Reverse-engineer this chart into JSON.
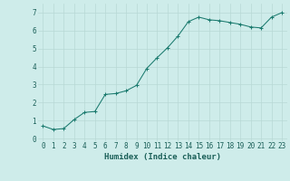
{
  "x": [
    0,
    1,
    2,
    3,
    4,
    5,
    6,
    7,
    8,
    9,
    10,
    11,
    12,
    13,
    14,
    15,
    16,
    17,
    18,
    19,
    20,
    21,
    22,
    23
  ],
  "y": [
    0.7,
    0.5,
    0.55,
    1.05,
    1.45,
    1.5,
    2.45,
    2.5,
    2.65,
    2.95,
    3.9,
    4.5,
    5.05,
    5.7,
    6.5,
    6.75,
    6.6,
    6.55,
    6.45,
    6.35,
    6.2,
    6.15,
    6.75,
    7.0
  ],
  "line_color": "#1a7a6e",
  "marker": "+",
  "marker_color": "#1a7a6e",
  "bg_color": "#ceecea",
  "grid_color": "#b8d8d5",
  "xlabel": "Humidex (Indice chaleur)",
  "xlabel_color": "#1a5f58",
  "xlabel_fontsize": 6.5,
  "tick_color": "#1a5f58",
  "tick_fontsize": 5.5,
  "xlim": [
    -0.5,
    23.5
  ],
  "ylim": [
    -0.15,
    7.5
  ],
  "yticks": [
    0,
    1,
    2,
    3,
    4,
    5,
    6,
    7
  ],
  "xticks": [
    0,
    1,
    2,
    3,
    4,
    5,
    6,
    7,
    8,
    9,
    10,
    11,
    12,
    13,
    14,
    15,
    16,
    17,
    18,
    19,
    20,
    21,
    22,
    23
  ]
}
